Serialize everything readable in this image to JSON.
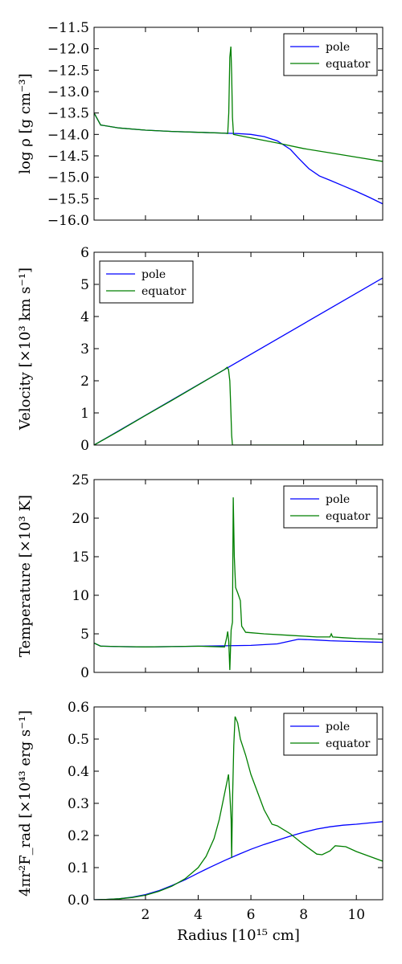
{
  "chart_data": [
    {
      "type": "line",
      "ylabel": "log ρ [g cm⁻³]",
      "xlabel": "",
      "xlim": [
        0.05,
        11.0
      ],
      "ylim": [
        -16.0,
        -11.5
      ],
      "xticks": [
        2,
        4,
        6,
        8,
        10
      ],
      "show_xtick_labels": false,
      "yticks": [
        "−11.5",
        "−12.0",
        "−12.5",
        "−13.0",
        "−13.5",
        "−14.0",
        "−14.5",
        "−15.0",
        "−15.5",
        "−16.0"
      ],
      "ytick_values": [
        -11.5,
        -12.0,
        -12.5,
        -13.0,
        -13.5,
        -14.0,
        -14.5,
        -15.0,
        -15.5,
        -16.0
      ],
      "grid": false,
      "legend": "top-right",
      "series": [
        {
          "name": "pole",
          "color": "#0000ff",
          "x": [
            0.05,
            0.3,
            1.0,
            2.0,
            3.0,
            4.0,
            5.0,
            5.5,
            6.0,
            6.5,
            7.0,
            7.5,
            7.8,
            8.2,
            8.6,
            9.0,
            9.5,
            10.0,
            10.5,
            11.0
          ],
          "y": [
            -13.5,
            -13.78,
            -13.85,
            -13.9,
            -13.93,
            -13.95,
            -13.97,
            -13.98,
            -14.0,
            -14.05,
            -14.15,
            -14.35,
            -14.55,
            -14.8,
            -14.97,
            -15.07,
            -15.2,
            -15.33,
            -15.47,
            -15.62
          ]
        },
        {
          "name": "equator",
          "color": "#007f00",
          "x": [
            0.05,
            0.3,
            1.0,
            2.0,
            3.0,
            4.0,
            5.0,
            5.12,
            5.16,
            5.2,
            5.24,
            5.27,
            5.3,
            5.34,
            5.5,
            6.0,
            7.0,
            8.0,
            9.0,
            10.0,
            11.0
          ],
          "y": [
            -13.5,
            -13.78,
            -13.85,
            -13.9,
            -13.93,
            -13.95,
            -13.97,
            -13.98,
            -13.5,
            -12.2,
            -11.95,
            -12.6,
            -13.6,
            -14.0,
            -14.02,
            -14.08,
            -14.2,
            -14.33,
            -14.43,
            -14.53,
            -14.63
          ]
        }
      ]
    },
    {
      "type": "line",
      "ylabel": "Velocity [×10³ km s⁻¹]",
      "xlabel": "",
      "xlim": [
        0.05,
        11.0
      ],
      "ylim": [
        0,
        6
      ],
      "xticks": [
        2,
        4,
        6,
        8,
        10
      ],
      "show_xtick_labels": false,
      "yticks": [
        "0",
        "1",
        "2",
        "3",
        "4",
        "5",
        "6"
      ],
      "ytick_values": [
        0,
        1,
        2,
        3,
        4,
        5,
        6
      ],
      "grid": false,
      "legend": "top-left",
      "series": [
        {
          "name": "pole",
          "color": "#0000ff",
          "x": [
            0.05,
            11.0
          ],
          "y": [
            0.0,
            5.2
          ]
        },
        {
          "name": "equator",
          "color": "#007f00",
          "x": [
            0.05,
            1.0,
            2.0,
            3.0,
            4.0,
            5.0,
            5.1,
            5.15,
            5.2,
            5.23,
            5.27,
            5.3,
            5.4,
            6.0,
            8.0,
            11.0
          ],
          "y": [
            0.0,
            0.44,
            0.92,
            1.39,
            1.87,
            2.35,
            2.42,
            2.35,
            2.0,
            1.3,
            0.3,
            0.0,
            0.0,
            0.0,
            0.0,
            0.0
          ]
        }
      ]
    },
    {
      "type": "line",
      "ylabel": "Temperature [×10³ K]",
      "xlabel": "",
      "xlim": [
        0.05,
        11.0
      ],
      "ylim": [
        0,
        25
      ],
      "xticks": [
        2,
        4,
        6,
        8,
        10
      ],
      "show_xtick_labels": false,
      "yticks": [
        "0",
        "5",
        "10",
        "15",
        "20",
        "25"
      ],
      "ytick_values": [
        0,
        5,
        10,
        15,
        20,
        25
      ],
      "grid": false,
      "legend": "top-right",
      "series": [
        {
          "name": "pole",
          "color": "#0000ff",
          "x": [
            0.05,
            0.3,
            1.0,
            2.0,
            3.0,
            4.0,
            5.0,
            6.0,
            7.0,
            7.4,
            7.8,
            8.5,
            9.0,
            10.0,
            11.0
          ],
          "y": [
            3.8,
            3.4,
            3.35,
            3.3,
            3.35,
            3.4,
            3.45,
            3.5,
            3.7,
            4.0,
            4.3,
            4.2,
            4.1,
            4.0,
            3.9
          ]
        },
        {
          "name": "equator",
          "color": "#007f00",
          "x": [
            0.05,
            0.3,
            1.0,
            2.0,
            3.0,
            4.0,
            5.0,
            5.08,
            5.12,
            5.16,
            5.2,
            5.25,
            5.3,
            5.33,
            5.37,
            5.42,
            5.5,
            5.6,
            5.65,
            5.8,
            6.5,
            7.5,
            8.5,
            9.0,
            9.05,
            9.1,
            9.5,
            10.0,
            11.0
          ],
          "y": [
            3.8,
            3.4,
            3.35,
            3.3,
            3.35,
            3.4,
            3.3,
            4.5,
            5.3,
            4.0,
            0.3,
            5.5,
            6.5,
            22.7,
            15.0,
            11.0,
            10.3,
            9.3,
            6.0,
            5.2,
            5.0,
            4.8,
            4.6,
            4.6,
            5.0,
            4.6,
            4.5,
            4.4,
            4.3
          ]
        }
      ]
    },
    {
      "type": "line",
      "ylabel": "4πr²F_rad [×10⁴³ erg s⁻¹]",
      "xlabel": "Radius [10¹⁵ cm]",
      "xlim": [
        0.05,
        11.0
      ],
      "ylim": [
        0.0,
        0.6
      ],
      "xticks": [
        2,
        4,
        6,
        8,
        10
      ],
      "show_xtick_labels": true,
      "yticks": [
        "0.0",
        "0.1",
        "0.2",
        "0.3",
        "0.4",
        "0.5",
        "0.6"
      ],
      "ytick_values": [
        0.0,
        0.1,
        0.2,
        0.3,
        0.4,
        0.5,
        0.6
      ],
      "grid": false,
      "legend": "top-right",
      "series": [
        {
          "name": "pole",
          "color": "#0000ff",
          "x": [
            0.05,
            0.5,
            1.0,
            1.5,
            2.0,
            2.5,
            3.0,
            3.5,
            4.0,
            4.5,
            5.0,
            5.5,
            6.0,
            6.5,
            7.0,
            7.5,
            8.0,
            8.5,
            9.0,
            9.5,
            10.0,
            10.5,
            11.0
          ],
          "y": [
            0.0,
            0.001,
            0.003,
            0.008,
            0.016,
            0.028,
            0.044,
            0.062,
            0.083,
            0.103,
            0.122,
            0.14,
            0.157,
            0.172,
            0.185,
            0.198,
            0.21,
            0.22,
            0.227,
            0.232,
            0.235,
            0.239,
            0.243
          ]
        },
        {
          "name": "equator",
          "color": "#007f00",
          "x": [
            0.05,
            0.5,
            1.0,
            1.5,
            2.0,
            2.5,
            3.0,
            3.5,
            4.0,
            4.3,
            4.6,
            4.8,
            5.0,
            5.1,
            5.15,
            5.2,
            5.25,
            5.27,
            5.3,
            5.35,
            5.4,
            5.5,
            5.6,
            5.8,
            6.0,
            6.5,
            6.8,
            7.0,
            7.5,
            8.0,
            8.5,
            8.7,
            9.0,
            9.2,
            9.6,
            10.0,
            10.5,
            11.0
          ],
          "y": [
            0.0,
            0.001,
            0.003,
            0.007,
            0.014,
            0.026,
            0.042,
            0.065,
            0.1,
            0.135,
            0.19,
            0.25,
            0.33,
            0.37,
            0.39,
            0.33,
            0.25,
            0.13,
            0.3,
            0.48,
            0.57,
            0.55,
            0.5,
            0.45,
            0.39,
            0.28,
            0.235,
            0.23,
            0.205,
            0.172,
            0.142,
            0.14,
            0.152,
            0.168,
            0.165,
            0.15,
            0.135,
            0.12
          ]
        }
      ]
    }
  ]
}
